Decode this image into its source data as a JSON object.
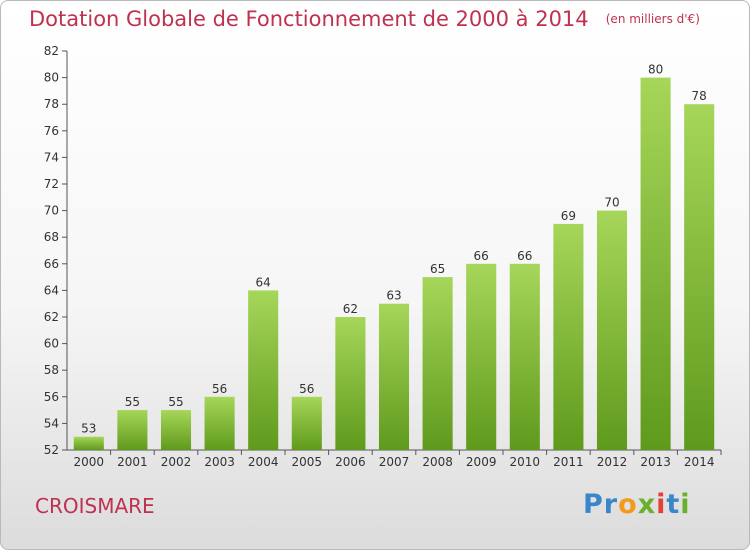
{
  "title": "Dotation Globale de Fonctionnement de 2000 à 2014",
  "unit_note": "(en milliers d'€)",
  "commune": "CROISMARE",
  "logo": {
    "letters": [
      "P",
      "r",
      "o",
      "x",
      "i",
      "t",
      "i"
    ],
    "colors": [
      "#3a86c8",
      "#3a86c8",
      "#f29a1c",
      "#6ab02a",
      "#e2413a",
      "#3a86c8",
      "#6ab02a"
    ]
  },
  "colors": {
    "bar_top": "#a6d65a",
    "bar_bottom": "#5f9a1c",
    "title": "#c0314f",
    "axis": "#555555"
  },
  "chart_data": {
    "type": "bar",
    "categories": [
      "2000",
      "2001",
      "2002",
      "2003",
      "2004",
      "2005",
      "2006",
      "2007",
      "2008",
      "2009",
      "2010",
      "2011",
      "2012",
      "2013",
      "2014"
    ],
    "values": [
      53,
      55,
      55,
      56,
      64,
      56,
      62,
      63,
      65,
      66,
      66,
      69,
      70,
      80,
      78
    ],
    "title": "Dotation Globale de Fonctionnement de 2000 à 2014",
    "ylabel": "",
    "xlabel": "",
    "ylim": [
      52,
      82
    ],
    "yticks": [
      52,
      54,
      56,
      58,
      60,
      62,
      64,
      66,
      68,
      70,
      72,
      74,
      76,
      78,
      80,
      82
    ],
    "grid": false,
    "legend": "none"
  }
}
